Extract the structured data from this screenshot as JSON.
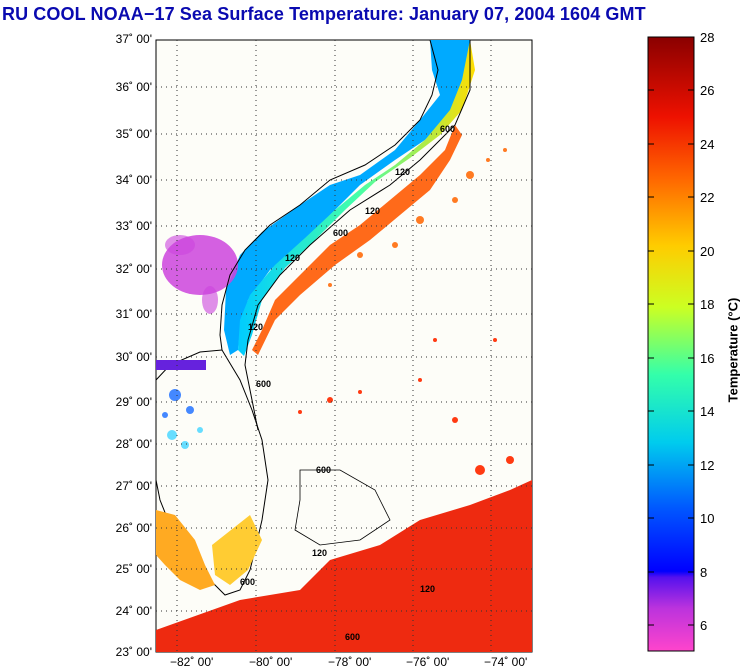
{
  "title": "RU COOL  NOAA−17  Sea Surface Temperature:  January 07, 2004 1604 GMT",
  "map": {
    "lat_labels": [
      "37˚ 00'",
      "36˚ 00'",
      "35˚ 00'",
      "34˚ 00'",
      "33˚ 00'",
      "32˚ 00'",
      "31˚ 00'",
      "30˚ 00'",
      "29˚ 00'",
      "28˚ 00'",
      "27˚ 00'",
      "26˚ 00'",
      "25˚ 00'",
      "24˚ 00'",
      "23˚ 00'"
    ],
    "lon_labels": [
      "−82˚ 00'",
      "−80˚ 00'",
      "−78˚ 00'",
      "−76˚ 00'",
      "−74˚ 00'"
    ],
    "lat_range": [
      23,
      37
    ],
    "lon_range": [
      -83.2,
      -73.6
    ],
    "contour_labels": [
      "600",
      "120",
      "120",
      "600",
      "120",
      "120",
      "600",
      "600",
      "120",
      "600",
      "120",
      "600"
    ]
  },
  "colorbar": {
    "title": "Temperature (°C)",
    "ticks": [
      "28",
      "26",
      "24",
      "22",
      "20",
      "18",
      "16",
      "14",
      "12",
      "10",
      "8",
      "6"
    ],
    "range": [
      5,
      28
    ]
  }
}
